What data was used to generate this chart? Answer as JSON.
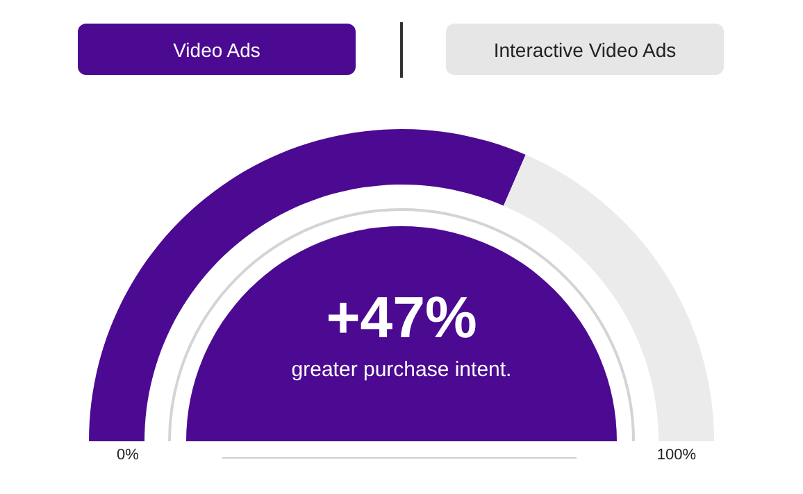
{
  "chart_data": {
    "type": "donut",
    "categories": [
      null,
      null
    ],
    "values": [
      63,
      37
    ],
    "colors": [
      "#4b0a91",
      "#ebebeb"
    ],
    "annotations": [
      "Video Ads",
      "Interactive Video Ads",
      "+47%",
      "greater purchase intent.",
      "0%",
      "100%"
    ]
  }
}
